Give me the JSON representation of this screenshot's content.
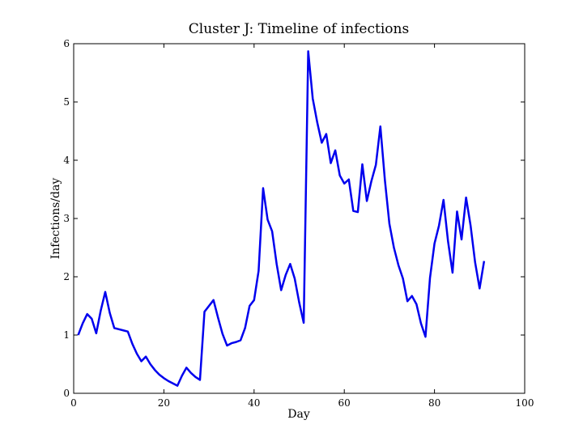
{
  "chart_data": {
    "type": "line",
    "title": "Cluster J: Timeline of infections",
    "xlabel": "Day",
    "ylabel": "Infections/day",
    "xlim": [
      0,
      100
    ],
    "ylim": [
      0,
      6
    ],
    "xticks": [
      0,
      20,
      40,
      60,
      80,
      100
    ],
    "yticks": [
      0,
      1,
      2,
      3,
      4,
      5,
      6
    ],
    "grid": false,
    "series": [
      {
        "color": "#0000ee",
        "x": [
          1,
          2,
          3,
          4,
          5,
          6,
          7,
          8,
          9,
          10,
          11,
          12,
          13,
          14,
          15,
          16,
          17,
          18,
          19,
          20,
          21,
          22,
          23,
          24,
          25,
          26,
          27,
          28,
          29,
          30,
          31,
          32,
          33,
          34,
          35,
          36,
          37,
          38,
          39,
          40,
          41,
          42,
          43,
          44,
          45,
          46,
          47,
          48,
          49,
          50,
          51,
          52,
          53,
          54,
          55,
          56,
          57,
          58,
          59,
          60,
          61,
          62,
          63,
          64,
          65,
          66,
          67,
          68,
          69,
          70,
          71,
          72,
          73,
          74,
          75,
          76,
          77,
          78,
          79,
          80,
          81,
          82,
          83,
          84,
          85,
          86,
          87,
          88,
          89,
          90,
          91
        ],
        "y": [
          1.0,
          1.2,
          1.36,
          1.28,
          1.03,
          1.42,
          1.74,
          1.38,
          1.12,
          1.1,
          1.08,
          1.06,
          0.85,
          0.68,
          0.55,
          0.63,
          0.5,
          0.4,
          0.32,
          0.26,
          0.21,
          0.17,
          0.13,
          0.3,
          0.44,
          0.35,
          0.28,
          0.23,
          1.4,
          1.5,
          1.6,
          1.3,
          1.02,
          0.82,
          0.86,
          0.88,
          0.91,
          1.12,
          1.5,
          1.6,
          2.1,
          3.52,
          2.98,
          2.78,
          2.22,
          1.77,
          2.03,
          2.22,
          1.97,
          1.56,
          1.21,
          5.87,
          5.06,
          4.65,
          4.3,
          4.45,
          3.95,
          4.17,
          3.74,
          3.6,
          3.67,
          3.13,
          3.11,
          3.93,
          3.3,
          3.64,
          3.92,
          4.58,
          3.66,
          2.91,
          2.5,
          2.2,
          1.97,
          1.58,
          1.67,
          1.53,
          1.2,
          0.97,
          1.98,
          2.57,
          2.88,
          3.32,
          2.61,
          2.07,
          3.12,
          2.64,
          3.36,
          2.88,
          2.25,
          1.8,
          2.27
        ]
      }
    ]
  }
}
